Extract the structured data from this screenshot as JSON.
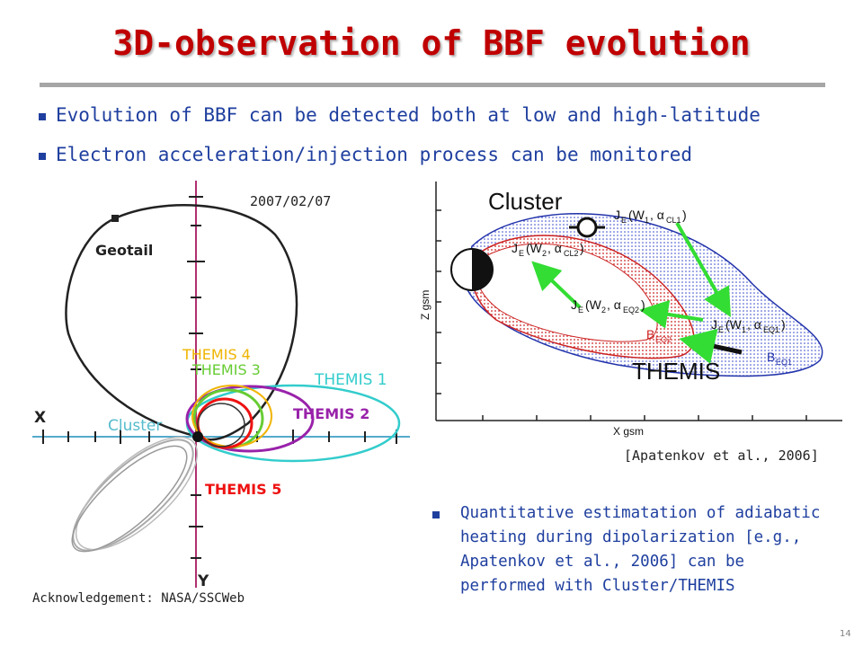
{
  "slide": {
    "title": "3D-observation of BBF evolution",
    "bullets": [
      "Evolution of BBF can be detected both at low and high-latitude",
      "Electron acceleration/injection process can be monitored"
    ],
    "orbit_plot": {
      "date": "2007/02/07",
      "axis_x": "X",
      "axis_y": "Y",
      "labels": {
        "geotail": "Geotail",
        "themis4": "THEMIS 4",
        "themis3": "THEMIS 3",
        "themis1": "THEMIS 1",
        "themis2": "THEMIS 2",
        "themis5": "THEMIS 5",
        "cluster": "Cluster"
      },
      "colors": {
        "geotail": "#222222",
        "themis4": "#f0b400",
        "themis3": "#66cc33",
        "themis1": "#33cccc",
        "themis2": "#9922aa",
        "themis5": "#ee1111",
        "cluster": "#55bbcc",
        "axis": "#b03070"
      }
    },
    "acknowledgement": "Acknowledgement:  NASA/SSCWeb",
    "field_plot": {
      "cluster_label": "Cluster",
      "themis_label": "THEMIS",
      "z_axis": "Z gsm",
      "x_axis": "X gsm",
      "je_cl1": "J",
      "je_cl1_sub": "E",
      "je_cl1_args": "(W",
      "eq_labels": {
        "cl1": "(W1, αCL1)",
        "cl2": "(W2, αCL2)",
        "eq2": "(W2, αEQ2)",
        "eq1": "(W1, αEQ1)",
        "beq2": "B",
        "beq2_sub": "EQ2",
        "beq1": "B",
        "beq1_sub": "EQ1"
      }
    },
    "citation": "[Apatenkov et al., 2006]",
    "quant_bullet": "Quantitative estimatation of adiabatic\nheating during dipolarization  [e.g.,\nApatenkov et al., 2006] can be\nperformed with Cluster/THEMIS",
    "page_number": "14"
  }
}
